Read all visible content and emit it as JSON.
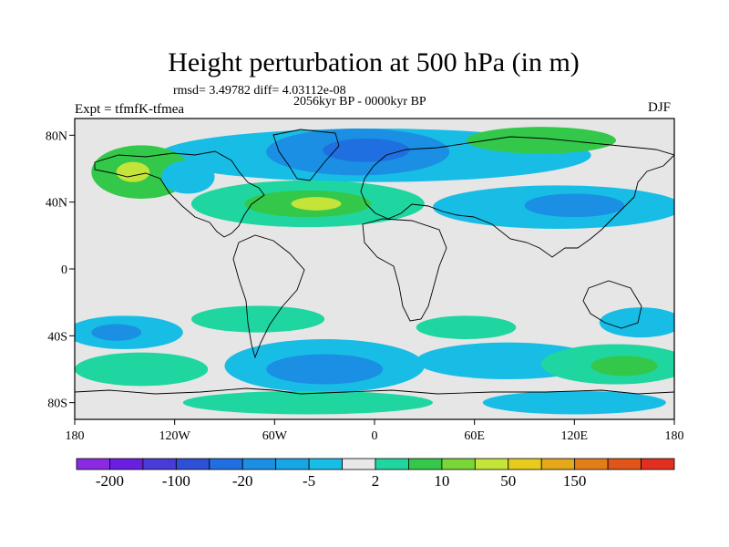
{
  "title": "Height perturbation at 500 hPa (in m)",
  "stats": "rmsd= 3.49782 diff= 4.03112e-08",
  "period": "2056kyr BP - 0000kyr BP",
  "experiment": "Expt = tfmfK-tfmea",
  "season": "DJF",
  "axes": {
    "y_ticks": [
      "80N",
      "40N",
      "0",
      "40S",
      "80S"
    ],
    "x_ticks": [
      "180",
      "120W",
      "60W",
      "0",
      "60E",
      "120E",
      "180"
    ]
  },
  "colorbar": {
    "colors": [
      "#8a2be2",
      "#6a1ee0",
      "#4a3ad8",
      "#2e4fd6",
      "#1f6fe0",
      "#1a8fe3",
      "#16a6e6",
      "#18bde6",
      "#e8e8e8",
      "#1fd6a0",
      "#34c84a",
      "#7ad637",
      "#c4e43a",
      "#e6cc1c",
      "#e4a81a",
      "#e27e18",
      "#e05518",
      "#e23020"
    ],
    "labels": [
      "-200",
      "-100",
      "-20",
      "-5",
      "2",
      "10",
      "50",
      "150"
    ]
  },
  "map": {
    "background": "#e6e6e6",
    "fields": [
      {
        "name": "arctic-positive-band",
        "lon": 0,
        "lat": 68,
        "rx": 130,
        "ry": 16,
        "color": "#18bde6"
      },
      {
        "name": "north-atlantic-low",
        "lon": -10,
        "lat": 70,
        "rx": 55,
        "ry": 14,
        "color": "#1a8fe3"
      },
      {
        "name": "greenland-low-core",
        "lon": -5,
        "lat": 71,
        "rx": 26,
        "ry": 7,
        "color": "#1f6fe0"
      },
      {
        "name": "siberia-high",
        "lon": 100,
        "lat": 77,
        "rx": 45,
        "ry": 8,
        "color": "#34c84a"
      },
      {
        "name": "pacific-high",
        "lon": -140,
        "lat": 58,
        "rx": 30,
        "ry": 16,
        "color": "#34c84a"
      },
      {
        "name": "pacific-high-core",
        "lon": -145,
        "lat": 58,
        "rx": 10,
        "ry": 6,
        "color": "#c4e43a"
      },
      {
        "name": "north-america-low",
        "lon": -112,
        "lat": 55,
        "rx": 16,
        "ry": 10,
        "color": "#18bde6"
      },
      {
        "name": "atlantic-high",
        "lon": -40,
        "lat": 39,
        "rx": 70,
        "ry": 14,
        "color": "#1fd6a0"
      },
      {
        "name": "atlantic-high-core",
        "lon": -40,
        "lat": 39,
        "rx": 38,
        "ry": 8,
        "color": "#34c84a"
      },
      {
        "name": "atlantic-high-peak",
        "lon": -35,
        "lat": 39,
        "rx": 15,
        "ry": 4,
        "color": "#c4e43a"
      },
      {
        "name": "asia-low",
        "lon": 110,
        "lat": 37,
        "rx": 75,
        "ry": 13,
        "color": "#18bde6"
      },
      {
        "name": "asia-low-core",
        "lon": 120,
        "lat": 38,
        "rx": 30,
        "ry": 7,
        "color": "#1a8fe3"
      },
      {
        "name": "south-pacific-low",
        "lon": -150,
        "lat": -38,
        "rx": 35,
        "ry": 10,
        "color": "#18bde6"
      },
      {
        "name": "south-pacific-low-core",
        "lon": -155,
        "lat": -38,
        "rx": 15,
        "ry": 5,
        "color": "#1a8fe3"
      },
      {
        "name": "south-pacific-high",
        "lon": -140,
        "lat": -60,
        "rx": 40,
        "ry": 10,
        "color": "#1fd6a0"
      },
      {
        "name": "south-america-high",
        "lon": -70,
        "lat": -30,
        "rx": 40,
        "ry": 8,
        "color": "#1fd6a0"
      },
      {
        "name": "south-atlantic-low",
        "lon": -30,
        "lat": -58,
        "rx": 60,
        "ry": 16,
        "color": "#18bde6"
      },
      {
        "name": "south-atlantic-low-core",
        "lon": -30,
        "lat": -60,
        "rx": 35,
        "ry": 9,
        "color": "#1a8fe3"
      },
      {
        "name": "antarctic-high",
        "lon": -40,
        "lat": -80,
        "rx": 75,
        "ry": 7,
        "color": "#1fd6a0"
      },
      {
        "name": "indian-ocean-high",
        "lon": 55,
        "lat": -35,
        "rx": 30,
        "ry": 7,
        "color": "#1fd6a0"
      },
      {
        "name": "indian-ocean-low",
        "lon": 80,
        "lat": -55,
        "rx": 55,
        "ry": 11,
        "color": "#18bde6"
      },
      {
        "name": "southern-ocean-high",
        "lon": 145,
        "lat": -57,
        "rx": 45,
        "ry": 12,
        "color": "#1fd6a0"
      },
      {
        "name": "southern-ocean-high-core",
        "lon": 150,
        "lat": -58,
        "rx": 20,
        "ry": 6,
        "color": "#34c84a"
      },
      {
        "name": "tasman-low",
        "lon": 160,
        "lat": -32,
        "rx": 25,
        "ry": 9,
        "color": "#18bde6"
      },
      {
        "name": "east-antarctic-low",
        "lon": 120,
        "lat": -80,
        "rx": 55,
        "ry": 7,
        "color": "#18bde6"
      }
    ]
  }
}
